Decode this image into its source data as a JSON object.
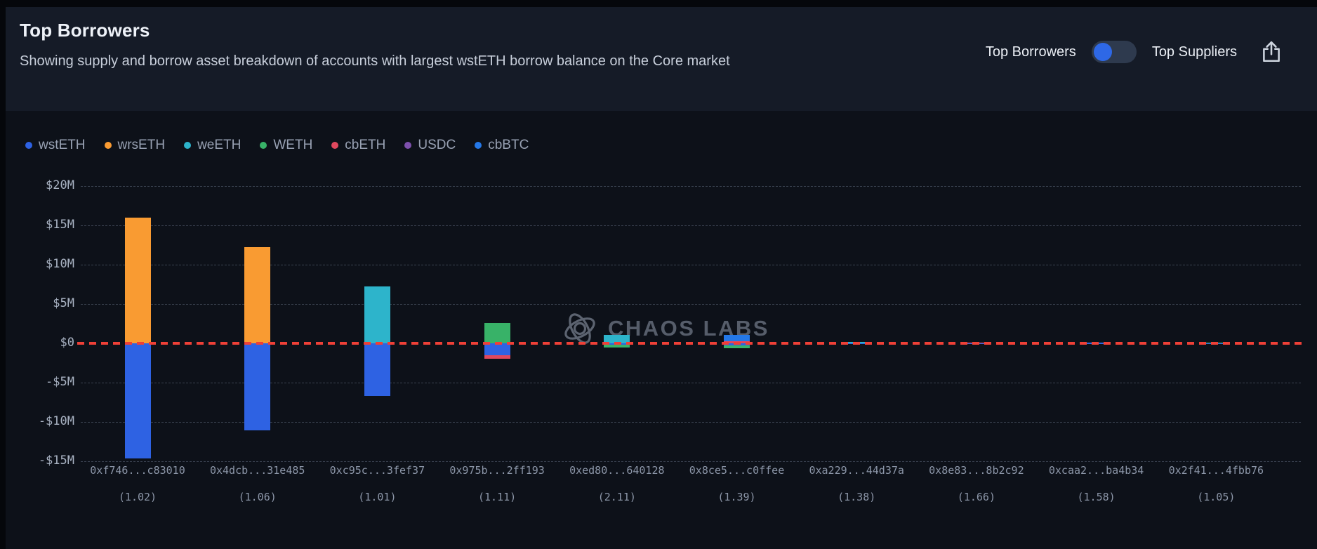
{
  "header": {
    "title": "Top Borrowers",
    "subtitle": "Showing supply and borrow asset breakdown of accounts with largest wstETH borrow balance on the Core market",
    "toggle": {
      "left_label": "Top Borrowers",
      "right_label": "Top Suppliers",
      "selected": "Top Borrowers",
      "knob_color": "#2e68e6"
    },
    "share_icon": "share-export-icon"
  },
  "watermark": {
    "icon": "chaos-labs-logo-icon",
    "text": "CHAOS LABS"
  },
  "chart_data": {
    "type": "bar",
    "stacked": true,
    "orientation": "vertical",
    "unit": "USD millions (supply positive, borrow negative)",
    "title": "",
    "xlabel": "",
    "ylabel": "",
    "ylim": [
      -17.5,
      21
    ],
    "grid": "horizontal dashed, zero line red dashed",
    "legend_position": "top-left",
    "assets": {
      "wstETH": "#2e62e3",
      "wrsETH": "#f99b32",
      "weETH": "#2db4cb",
      "WETH": "#38b268",
      "cbETH": "#e0485e",
      "USDC": "#7d50ad",
      "cbBTC": "#2478e8"
    },
    "legend": [
      "wstETH",
      "wrsETH",
      "weETH",
      "WETH",
      "cbETH",
      "USDC",
      "cbBTC"
    ],
    "y_axis": {
      "ticks": [
        {
          "label": "$20M",
          "value": 20
        },
        {
          "label": "$15M",
          "value": 15
        },
        {
          "label": "$10M",
          "value": 10
        },
        {
          "label": "$5M",
          "value": 5
        },
        {
          "label": "$0",
          "value": 0
        },
        {
          "label": "-$5M",
          "value": -5
        },
        {
          "label": "-$10M",
          "value": -10
        },
        {
          "label": "-$15M",
          "value": -15
        }
      ]
    },
    "bars": [
      {
        "address": "0xf746...c83010",
        "ratio": "(1.02)",
        "supply": [
          {
            "asset": "wrsETH",
            "value_musd": 16.0
          }
        ],
        "borrow": [
          {
            "asset": "wstETH",
            "value_musd": -14.6
          }
        ]
      },
      {
        "address": "0x4dcb...31e485",
        "ratio": "(1.06)",
        "supply": [
          {
            "asset": "wrsETH",
            "value_musd": 12.2
          }
        ],
        "borrow": [
          {
            "asset": "wstETH",
            "value_musd": -11.1
          }
        ]
      },
      {
        "address": "0xc95c...3fef37",
        "ratio": "(1.01)",
        "supply": [
          {
            "asset": "weETH",
            "value_musd": 7.2
          }
        ],
        "borrow": [
          {
            "asset": "wstETH",
            "value_musd": -6.7
          }
        ]
      },
      {
        "address": "0x975b...2ff193",
        "ratio": "(1.11)",
        "supply": [
          {
            "asset": "WETH",
            "value_musd": 2.6
          }
        ],
        "borrow": [
          {
            "asset": "wstETH",
            "value_musd": -1.55
          },
          {
            "asset": "cbETH",
            "value_musd": -0.45
          }
        ]
      },
      {
        "address": "0xed80...640128",
        "ratio": "(2.11)",
        "supply": [
          {
            "asset": "weETH",
            "value_musd": 1.05
          }
        ],
        "borrow": [
          {
            "asset": "wstETH",
            "value_musd": -0.2
          },
          {
            "asset": "WETH",
            "value_musd": -0.3
          }
        ]
      },
      {
        "address": "0x8ce5...c0ffee",
        "ratio": "(1.39)",
        "supply": [
          {
            "asset": "cbETH",
            "value_musd": 0.3
          },
          {
            "asset": "cbBTC",
            "value_musd": 0.8
          }
        ],
        "borrow": [
          {
            "asset": "wstETH",
            "value_musd": -0.25
          },
          {
            "asset": "WETH",
            "value_musd": -0.35
          }
        ]
      },
      {
        "address": "0xa229...44d37a",
        "ratio": "(1.38)",
        "supply": [
          {
            "asset": "weETH",
            "value_musd": 0.15
          }
        ],
        "borrow": [
          {
            "asset": "wstETH",
            "value_musd": -0.1
          }
        ]
      },
      {
        "address": "0x8e83...8b2c92",
        "ratio": "(1.66)",
        "supply": [
          {
            "asset": "cbETH",
            "value_musd": 0.12
          }
        ],
        "borrow": [
          {
            "asset": "wstETH",
            "value_musd": -0.08
          }
        ]
      },
      {
        "address": "0xcaa2...ba4b34",
        "ratio": "(1.58)",
        "supply": [
          {
            "asset": "cbBTC",
            "value_musd": 0.12
          }
        ],
        "borrow": [
          {
            "asset": "wstETH",
            "value_musd": -0.08
          }
        ]
      },
      {
        "address": "0x2f41...4fbb76",
        "ratio": "(1.05)",
        "supply": [
          {
            "asset": "WETH",
            "value_musd": 0.12
          }
        ],
        "borrow": [
          {
            "asset": "wstETH",
            "value_musd": -0.08
          }
        ]
      }
    ]
  }
}
